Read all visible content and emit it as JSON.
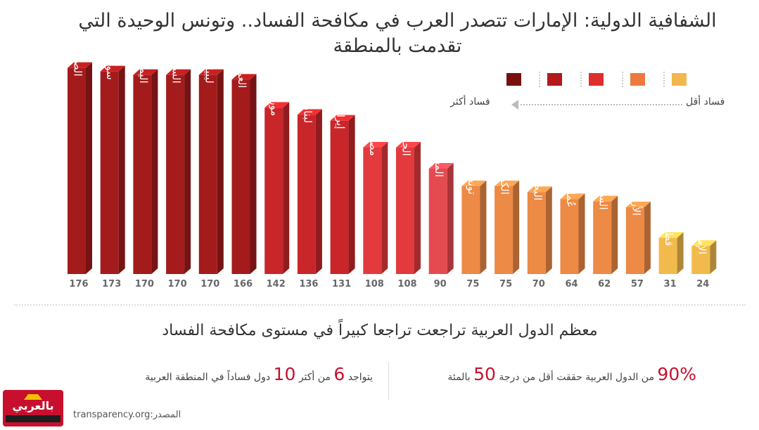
{
  "title": "الشفافية الدولية: الإمارات تتصدر العرب في مكافحة الفساد.. وتونس الوحيدة التي تقدمت بالمنطقة",
  "legend": {
    "less_corrupt": "فساد أقل",
    "more_corrupt": "فساد أكثر",
    "scale_colors": [
      "#f2b74d",
      "#ea7a3e",
      "#dd2f2d",
      "#b3191c",
      "#7a0f10"
    ]
  },
  "chart_data": {
    "type": "bar",
    "title": "الشفافية الدولية: الإمارات تتصدر العرب في مكافحة الفساد.. وتونس الوحيدة التي تقدمت بالمنطقة",
    "categories": [
      "الصومال",
      "سوريا",
      "اليمن",
      "السودان",
      "ليبيا",
      "العراق",
      "موريتانيا",
      "لبنان",
      "إيران",
      "مصر",
      "الجزائر",
      "المغرب",
      "تونس",
      "الكويت",
      "البحرين",
      "عُمان",
      "السعودية",
      "الأردن",
      "قطر",
      "الإمارات"
    ],
    "values": [
      176,
      173,
      170,
      170,
      170,
      166,
      142,
      136,
      131,
      108,
      108,
      90,
      75,
      75,
      70,
      64,
      62,
      57,
      31,
      24
    ],
    "colors": [
      "#a41b1c",
      "#a41b1c",
      "#a41b1c",
      "#a41b1c",
      "#a41b1c",
      "#a41b1c",
      "#c9262a",
      "#c9262a",
      "#c9262a",
      "#e23a3d",
      "#e23a3d",
      "#e64a51",
      "#ed8a45",
      "#ed8a45",
      "#ed8a45",
      "#ed8a45",
      "#ed8a45",
      "#ed8a45",
      "#f2ba4c",
      "#f2ba4c"
    ],
    "ylim": [
      0,
      180
    ]
  },
  "subheading": "معظم الدول العربية تراجعت تراجعا كبيراً في مستوى مكافحة الفساد",
  "stat_right": {
    "big": "90%",
    "text": "من  الدول العربية حققت أقل من درجة",
    "num": "50",
    "tail": "بالمئة"
  },
  "stat_left": {
    "pre": "يتواجد",
    "num1": "6",
    "mid": "من أكثر",
    "num2": "10",
    "tail": "دول فساداً في المنطقة العربية"
  },
  "source": "المصدر:transparency.org",
  "logo_text": "بالعربي"
}
